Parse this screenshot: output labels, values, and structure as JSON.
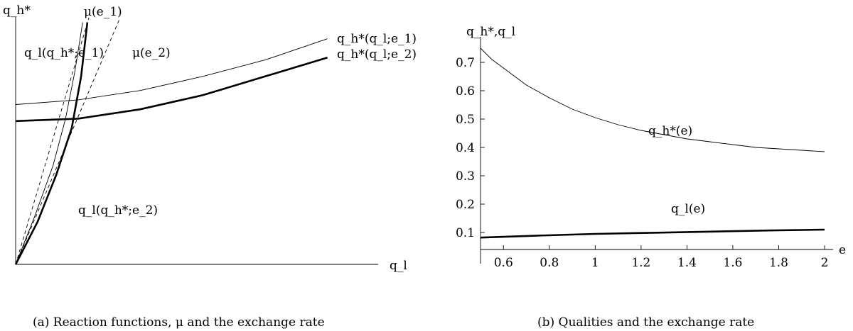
{
  "chart_data": [
    {
      "type": "line",
      "caption": "(a) Reaction functions, μ and the exchange rate",
      "ylabel": "q_h*",
      "xlabel": "q_l",
      "curve_labels": {
        "qh_e1": "q_h*(q_l;e_1)",
        "qh_e2": "q_h*(q_l;e_2)",
        "ql_e1": "q_l(q_h*;e_1)",
        "ql_e2": "q_l(q_h*;e_2)",
        "mu_e1": "μ(e_1)",
        "mu_e2": "μ(e_2)"
      },
      "series": [
        {
          "name": "q_h*(q_l;e_1)",
          "style": "thin",
          "points": [
            [
              0,
              0.68
            ],
            [
              0.2,
              0.7
            ],
            [
              0.4,
              0.74
            ],
            [
              0.6,
              0.8
            ],
            [
              0.8,
              0.87
            ],
            [
              1.0,
              0.96
            ]
          ]
        },
        {
          "name": "q_h*(q_l;e_2)",
          "style": "thick",
          "points": [
            [
              0,
              0.61
            ],
            [
              0.2,
              0.62
            ],
            [
              0.4,
              0.66
            ],
            [
              0.6,
              0.72
            ],
            [
              0.8,
              0.8
            ],
            [
              1.0,
              0.88
            ]
          ]
        },
        {
          "name": "q_l(q_h*;e_1)",
          "style": "thin",
          "points": [
            [
              0,
              0
            ],
            [
              0.06,
              0.2
            ],
            [
              0.12,
              0.42
            ],
            [
              0.16,
              0.62
            ],
            [
              0.19,
              0.82
            ],
            [
              0.215,
              1.03
            ]
          ]
        },
        {
          "name": "q_l(q_h*;e_2)",
          "style": "thick",
          "points": [
            [
              0,
              0
            ],
            [
              0.07,
              0.18
            ],
            [
              0.13,
              0.38
            ],
            [
              0.18,
              0.58
            ],
            [
              0.21,
              0.8
            ],
            [
              0.23,
              1.03
            ]
          ]
        },
        {
          "name": "μ(e_1)",
          "style": "dashed",
          "points": [
            [
              0,
              0
            ],
            [
              0.235,
              1.05
            ]
          ]
        },
        {
          "name": "μ(e_2)",
          "style": "dashed",
          "points": [
            [
              0,
              0
            ],
            [
              0.335,
              1.05
            ]
          ]
        }
      ]
    },
    {
      "type": "line",
      "caption": "(b) Qualities and the exchange rate",
      "ylabel": "q_h*,q_l",
      "xlabel": "e",
      "xlim": [
        0.5,
        2.0
      ],
      "ylim": [
        0.04,
        0.78
      ],
      "xticks": [
        "0.6",
        "0.8",
        "1",
        "1.2",
        "1.4",
        "1.6",
        "1.8",
        "2"
      ],
      "yticks": [
        "0.1",
        "0.2",
        "0.3",
        "0.4",
        "0.5",
        "0.6",
        "0.7"
      ],
      "series": [
        {
          "name": "q_h*(e)",
          "style": "thin",
          "x": [
            0.5,
            0.55,
            0.6,
            0.7,
            0.8,
            0.9,
            1.0,
            1.1,
            1.2,
            1.3,
            1.4,
            1.5,
            1.6,
            1.7,
            1.8,
            1.9,
            2.0
          ],
          "y": [
            0.75,
            0.71,
            0.68,
            0.62,
            0.575,
            0.535,
            0.505,
            0.48,
            0.46,
            0.445,
            0.43,
            0.42,
            0.41,
            0.4,
            0.395,
            0.39,
            0.385
          ]
        },
        {
          "name": "q_l(e)",
          "style": "thick",
          "x": [
            0.5,
            0.75,
            1.0,
            1.25,
            1.5,
            1.75,
            2.0
          ],
          "y": [
            0.082,
            0.089,
            0.095,
            0.099,
            0.103,
            0.107,
            0.11
          ]
        }
      ]
    }
  ]
}
